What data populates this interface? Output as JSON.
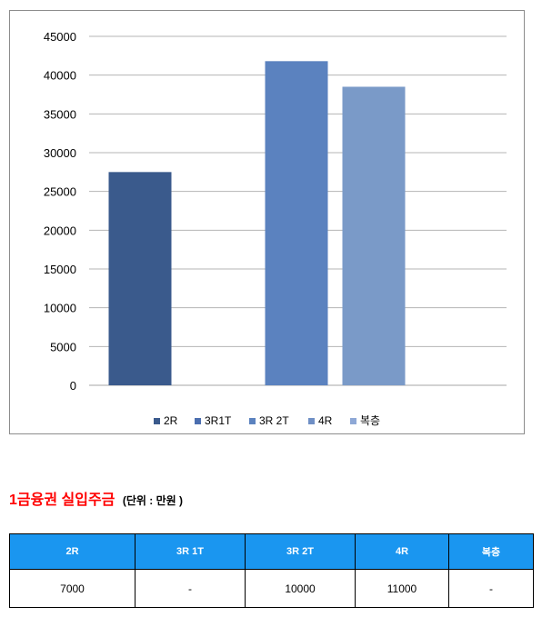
{
  "chart_data": {
    "type": "bar",
    "categories": [
      "2R",
      "3R1T",
      "3R 2T",
      "4R",
      "복층"
    ],
    "values": [
      27500,
      null,
      41800,
      38500,
      null
    ],
    "ylim": [
      0,
      45000
    ],
    "yticks": [
      0,
      5000,
      10000,
      15000,
      20000,
      25000,
      30000,
      35000,
      40000,
      45000
    ],
    "grid": true,
    "legend_position": "bottom",
    "colors": [
      "#3a5a8c",
      "#4b6eaf",
      "#5b82bf",
      "#6f8fc5",
      "#8ea8d6"
    ],
    "bar_colors": [
      "#3a5a8c",
      null,
      "#5b82bf",
      "#7a9ac8",
      null
    ]
  },
  "section": {
    "title": "1금융권 실입주금",
    "unit": "(단위 : 만원 )"
  },
  "table": {
    "headers": [
      "2R",
      "3R 1T",
      "3R 2T",
      "4R",
      "복층"
    ],
    "rows": [
      [
        "7000",
        "-",
        "10000",
        "11000",
        "-"
      ]
    ]
  }
}
